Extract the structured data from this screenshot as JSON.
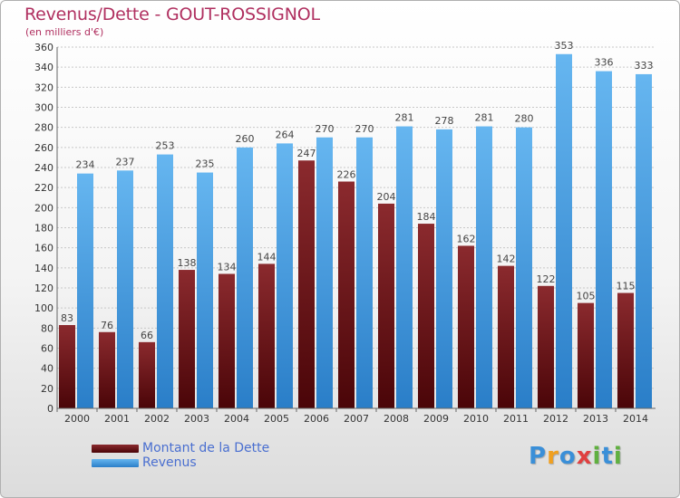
{
  "title": "Revenus/Dette - GOUT-ROSSIGNOL",
  "subtitle": "(en milliers d'€)",
  "colors": {
    "dette_top": "#8b2a2e",
    "dette_bottom": "#4a0508",
    "revenus_top": "#66b6f0",
    "revenus_bottom": "#2a7ec8",
    "grid": "#c8c8c8",
    "title": "#b03060"
  },
  "chart_data": {
    "type": "bar",
    "categories": [
      "2000",
      "2001",
      "2002",
      "2003",
      "2004",
      "2005",
      "2006",
      "2007",
      "2008",
      "2009",
      "2010",
      "2011",
      "2012",
      "2013",
      "2014"
    ],
    "series": [
      {
        "name": "Montant de la Dette",
        "values": [
          83,
          76,
          66,
          138,
          134,
          144,
          247,
          226,
          204,
          184,
          162,
          142,
          122,
          105,
          115
        ]
      },
      {
        "name": "Revenus",
        "values": [
          234,
          237,
          253,
          235,
          260,
          264,
          270,
          270,
          281,
          278,
          281,
          280,
          353,
          336,
          333
        ]
      }
    ],
    "ylim": [
      0,
      360
    ],
    "yticks": [
      0,
      20,
      40,
      60,
      80,
      100,
      120,
      140,
      160,
      180,
      200,
      220,
      240,
      260,
      280,
      300,
      320,
      340,
      360
    ],
    "grid": true,
    "legend": "bottom-left"
  },
  "legend": {
    "items": [
      {
        "label": "Montant de la Dette",
        "icon": "dark-red-bar"
      },
      {
        "label": "Revenus",
        "icon": "blue-bar"
      }
    ]
  },
  "logo": {
    "letters": [
      "P",
      "r",
      "o",
      "x",
      "i",
      "t",
      "i"
    ],
    "colors": [
      "#3a8fd8",
      "#f0a020",
      "#3a8fd8",
      "#e04040",
      "#60b040",
      "#3a8fd8",
      "#60b040"
    ]
  }
}
